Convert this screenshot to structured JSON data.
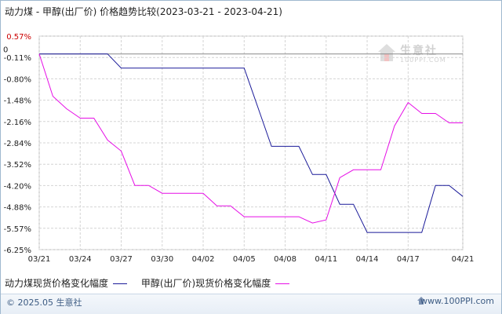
{
  "title": "动力煤 - 甲醇(出厂价) 价格趋势比较(2023-03-21 - 2023-04-21)",
  "watermark": {
    "main": "生意社",
    "sub": "100PPI.COM"
  },
  "footer": {
    "copyright": "© 2025.05 生意社",
    "site": "www.100PPI.com"
  },
  "chart_data": {
    "type": "line",
    "title": "动力煤 - 甲醇(出厂价) 价格趋势比较(2023-03-21 - 2023-04-21)",
    "xlabel": "",
    "ylabel": "",
    "x_ticks": [
      "03/21",
      "03/24",
      "03/27",
      "03/30",
      "04/02",
      "04/05",
      "04/08",
      "04/11",
      "04/14",
      "04/17",
      "04/21"
    ],
    "y_ticks": [
      "0.57%",
      "-0.11%",
      "-0.80%",
      "-1.48%",
      "-2.16%",
      "-2.84%",
      "-3.52%",
      "-4.20%",
      "-4.88%",
      "-5.57%",
      "-6.25%"
    ],
    "ylim": [
      -6.25,
      0.57
    ],
    "y_unit": "%",
    "zero_marker": "0",
    "x": [
      "03/21",
      "03/22",
      "03/23",
      "03/24",
      "03/25",
      "03/26",
      "03/27",
      "03/28",
      "03/29",
      "03/30",
      "03/31",
      "04/01",
      "04/02",
      "04/03",
      "04/04",
      "04/05",
      "04/06",
      "04/07",
      "04/08",
      "04/09",
      "04/10",
      "04/11",
      "04/12",
      "04/13",
      "04/14",
      "04/15",
      "04/16",
      "04/17",
      "04/18",
      "04/19",
      "04/20",
      "04/21"
    ],
    "grid": true,
    "legend_position": "bottom-left",
    "series": [
      {
        "name": "动力煤现货价格变化幅度",
        "color": "#1a1a99",
        "values": [
          0,
          0,
          0,
          0,
          0,
          0,
          -0.45,
          -0.45,
          -0.45,
          -0.45,
          -0.45,
          -0.45,
          -0.45,
          -0.45,
          -0.45,
          -0.45,
          -1.7,
          -2.95,
          -2.95,
          -2.95,
          -3.85,
          -3.85,
          -4.8,
          -4.8,
          -5.7,
          -5.7,
          -5.7,
          -5.7,
          -5.7,
          -4.2,
          -4.2,
          -4.55
        ]
      },
      {
        "name": "甲醇(出厂价)现货价格变化幅度",
        "color": "#e60ee6",
        "values": [
          0,
          -1.35,
          -1.75,
          -2.05,
          -2.05,
          -2.75,
          -3.1,
          -4.2,
          -4.2,
          -4.45,
          -4.45,
          -4.45,
          -4.45,
          -4.85,
          -4.85,
          -5.2,
          -5.2,
          -5.2,
          -5.2,
          -5.2,
          -5.4,
          -5.3,
          -3.95,
          -3.7,
          -3.7,
          -3.7,
          -2.3,
          -1.55,
          -1.9,
          -1.9,
          -2.2,
          -2.2
        ]
      }
    ]
  }
}
